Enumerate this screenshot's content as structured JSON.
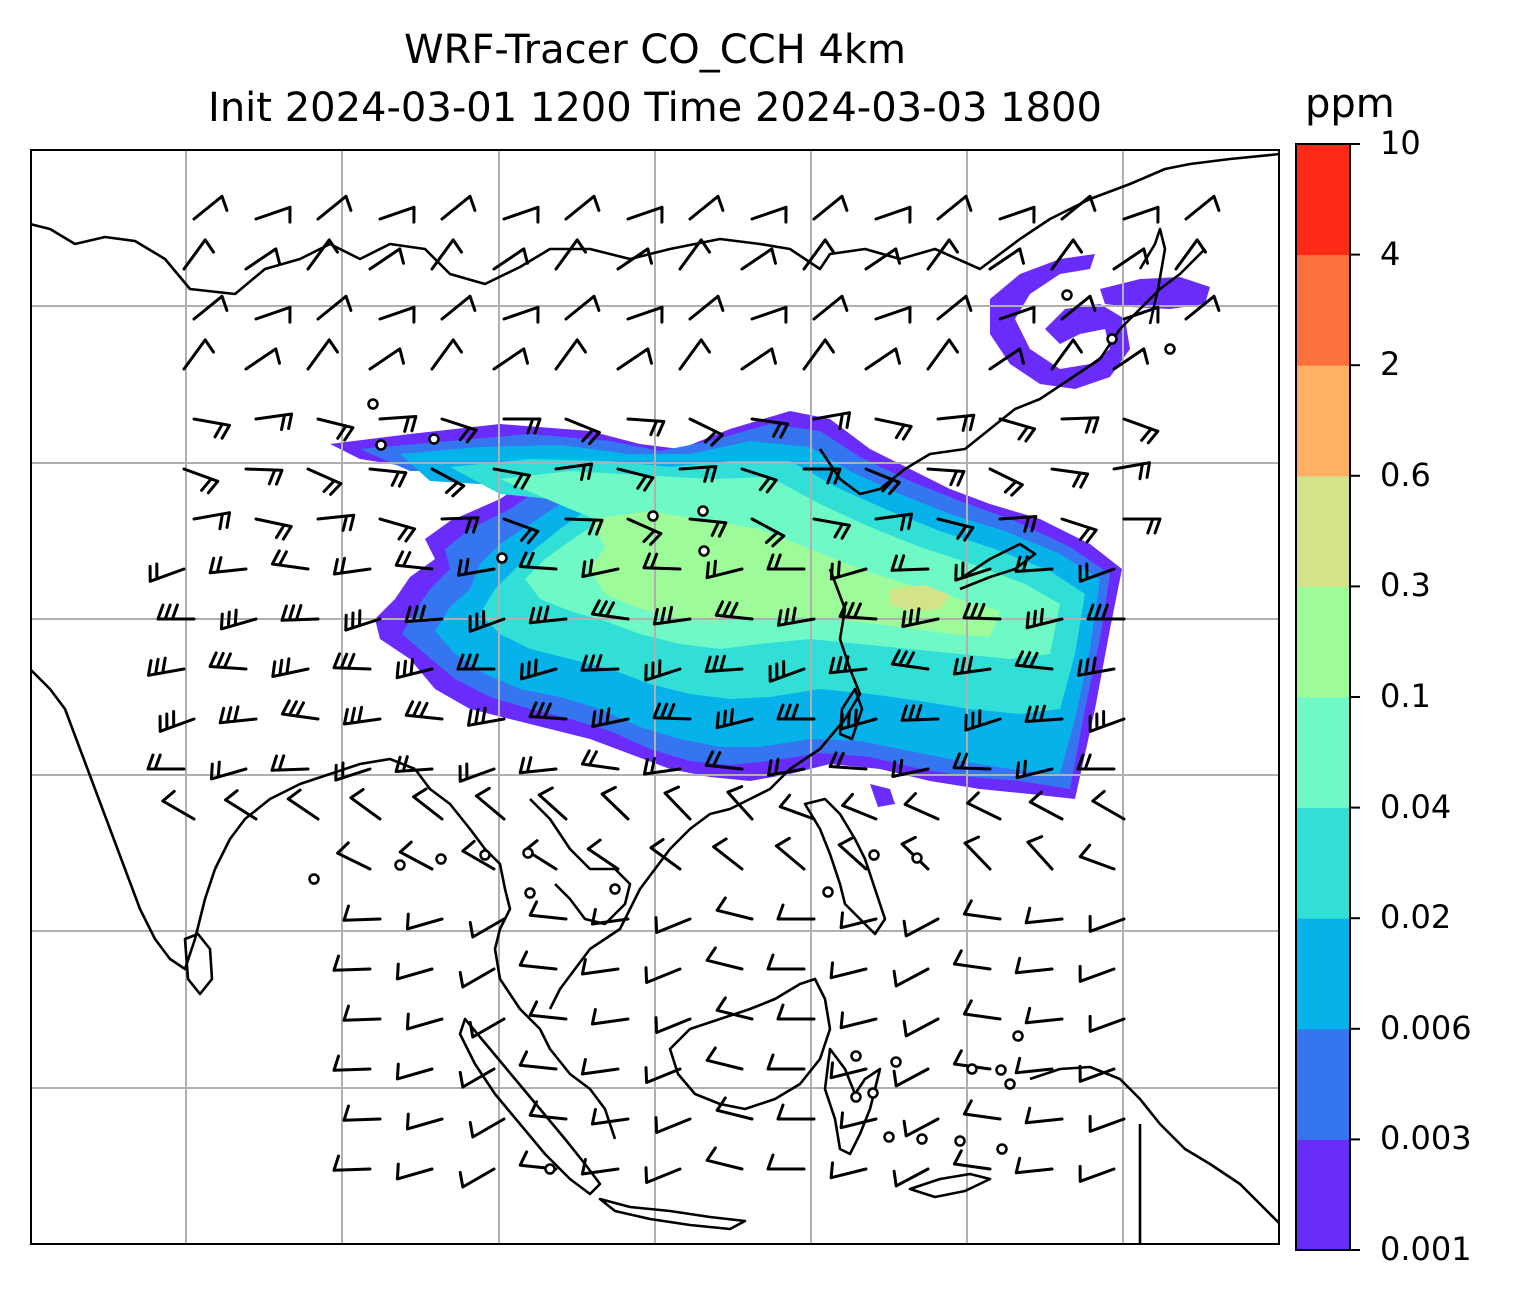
{
  "chart_data": {
    "type": "heatmap",
    "title": "WRF-Tracer CO_CCH 4km",
    "subtitle": "Init 2024-03-01 1200 Time 2024-03-03 1800",
    "colorbar": {
      "unit": "ppm",
      "levels": [
        "0.001",
        "0.003",
        "0.006",
        "0.02",
        "0.04",
        "0.1",
        "0.3",
        "0.6",
        "2",
        "4",
        "10"
      ],
      "colors": [
        "#6a2cfb",
        "#3575ef",
        "#07b1ea",
        "#31dfd6",
        "#6ef9c6",
        "#9dfb9a",
        "#d2e38a",
        "#feb064",
        "#fe713c",
        "#fe2a16"
      ]
    },
    "overlays": [
      "coastlines",
      "gridlines",
      "wind-barbs",
      "calm-circles"
    ],
    "grid": true
  }
}
